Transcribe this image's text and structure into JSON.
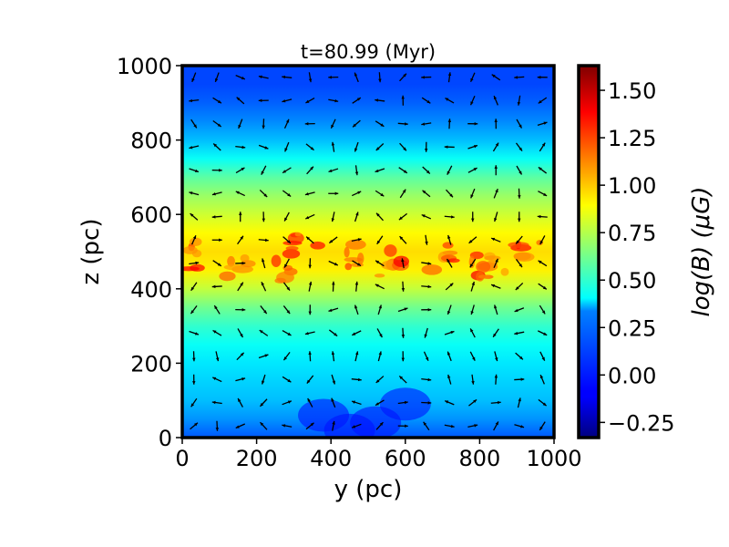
{
  "chart_data": {
    "type": "heatmap",
    "title": "t=80.99 (Myr)",
    "xlabel": "y (pc)",
    "ylabel": "z (pc)",
    "xlim": [
      0,
      1000
    ],
    "ylim": [
      0,
      1000
    ],
    "x_ticks": [
      0,
      200,
      400,
      600,
      800,
      1000
    ],
    "y_ticks": [
      0,
      200,
      400,
      600,
      800,
      1000
    ],
    "colorbar": {
      "label": "log(B) (μG)",
      "range": [
        -0.33,
        1.63
      ],
      "ticks": [
        -0.25,
        0.0,
        0.25,
        0.5,
        0.75,
        1.0,
        1.25,
        1.5
      ],
      "tick_labels": [
        "−0.25",
        "0.00",
        "0.25",
        "0.50",
        "0.75",
        "1.00",
        "1.25",
        "1.50"
      ],
      "colormap": "jet"
    },
    "field_profile_vs_z": {
      "z": [
        0,
        50,
        100,
        150,
        200,
        250,
        300,
        350,
        400,
        450,
        500,
        550,
        600,
        650,
        700,
        750,
        800,
        850,
        900,
        950,
        1000
      ],
      "log_B": [
        0.08,
        0.2,
        0.28,
        0.32,
        0.36,
        0.42,
        0.5,
        0.62,
        0.78,
        0.92,
        0.96,
        0.9,
        0.8,
        0.7,
        0.58,
        0.42,
        0.28,
        0.18,
        0.1,
        0.05,
        0.05
      ]
    },
    "vector_overlay": "magnetic field direction arrows on a regular grid",
    "grid": false
  }
}
